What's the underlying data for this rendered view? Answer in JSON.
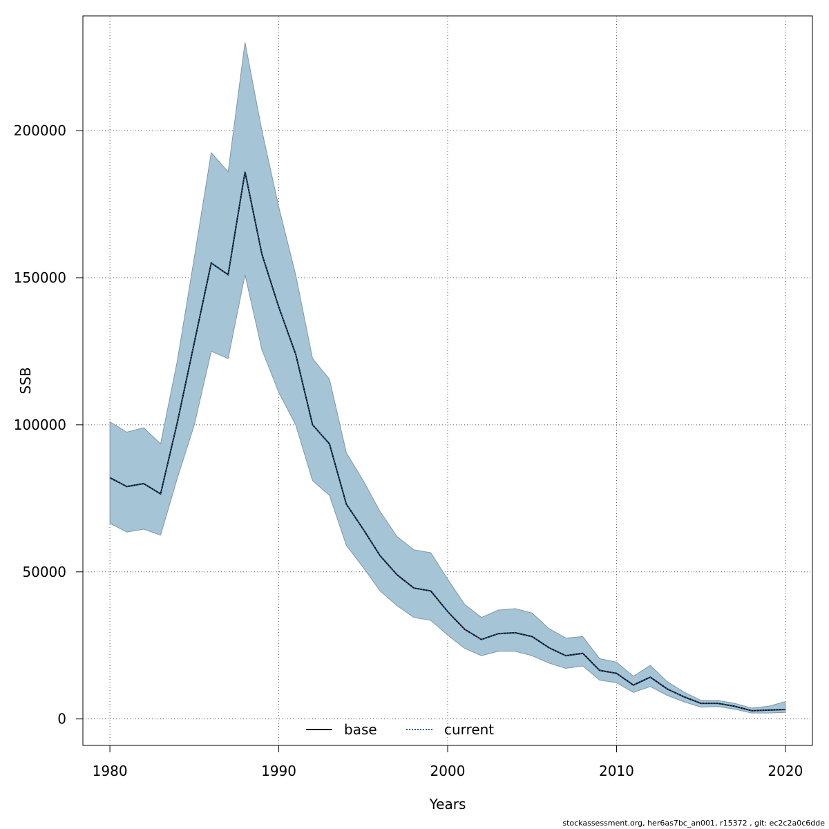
{
  "chart_data": {
    "type": "line",
    "title": "",
    "xlabel": "Years",
    "ylabel": "SSB",
    "xlim": [
      1978.4,
      2021.6
    ],
    "ylim": [
      -9000,
      239000
    ],
    "xticks": [
      1980,
      1990,
      2000,
      2010,
      2020
    ],
    "yticks": [
      0,
      50000,
      100000,
      150000,
      200000
    ],
    "grid": true,
    "legend_position": "bottom-center",
    "x": [
      1980,
      1981,
      1982,
      1983,
      1984,
      1985,
      1986,
      1987,
      1988,
      1989,
      1990,
      1991,
      1992,
      1993,
      1994,
      1995,
      1996,
      1997,
      1998,
      1999,
      2000,
      2001,
      2002,
      2003,
      2004,
      2005,
      2006,
      2007,
      2008,
      2009,
      2010,
      2011,
      2012,
      2013,
      2014,
      2015,
      2016,
      2017,
      2018,
      2019,
      2020
    ],
    "series": [
      {
        "name": "base",
        "style": "solid",
        "color": "#000000",
        "values": [
          82000,
          79000,
          80000,
          76500,
          101000,
          128000,
          155000,
          151000,
          186000,
          158000,
          140000,
          124000,
          100000,
          93500,
          73000,
          64500,
          55500,
          49000,
          44500,
          43500,
          36500,
          30500,
          27000,
          29000,
          29300,
          28000,
          24200,
          21500,
          22300,
          16500,
          15500,
          11500,
          14200,
          10200,
          7500,
          5300,
          5300,
          4300,
          2800,
          3000,
          3200
        ]
      },
      {
        "name": "current",
        "style": "dotted",
        "color": "#1f5b8c",
        "values": [
          82000,
          79000,
          80000,
          76500,
          101000,
          128000,
          155000,
          151000,
          186000,
          158000,
          140000,
          124000,
          100000,
          93500,
          73000,
          64500,
          55500,
          49000,
          44500,
          43500,
          36500,
          30500,
          27000,
          29000,
          29300,
          28000,
          24200,
          21500,
          22300,
          16500,
          15500,
          11500,
          14200,
          10200,
          7500,
          5300,
          5300,
          4300,
          2800,
          3000,
          3200
        ]
      }
    ],
    "band": {
      "color": "#a5c4d6",
      "upper": [
        101000,
        97500,
        99000,
        93500,
        122000,
        157000,
        192500,
        186000,
        230000,
        200000,
        174000,
        151000,
        122500,
        115500,
        90500,
        81000,
        70500,
        62000,
        57500,
        56500,
        47500,
        39000,
        34500,
        37000,
        37500,
        36000,
        30700,
        27500,
        28000,
        20500,
        19300,
        14500,
        18200,
        12700,
        9100,
        6300,
        6300,
        5300,
        3700,
        4300,
        5900
      ],
      "lower": [
        66500,
        63500,
        64500,
        62500,
        82000,
        100000,
        125000,
        122500,
        151000,
        125500,
        111000,
        100000,
        81000,
        76000,
        59000,
        51500,
        43500,
        38500,
        34500,
        33500,
        28500,
        24000,
        21500,
        23000,
        23000,
        21500,
        19000,
        17200,
        18000,
        13200,
        12300,
        9000,
        11000,
        8000,
        5800,
        4000,
        4200,
        3300,
        2000,
        2000,
        2200
      ]
    }
  },
  "footer": {
    "text": "stockassessment.org, her6as7bc_an001, r15372 , git: ec2c2a0c6dde"
  }
}
